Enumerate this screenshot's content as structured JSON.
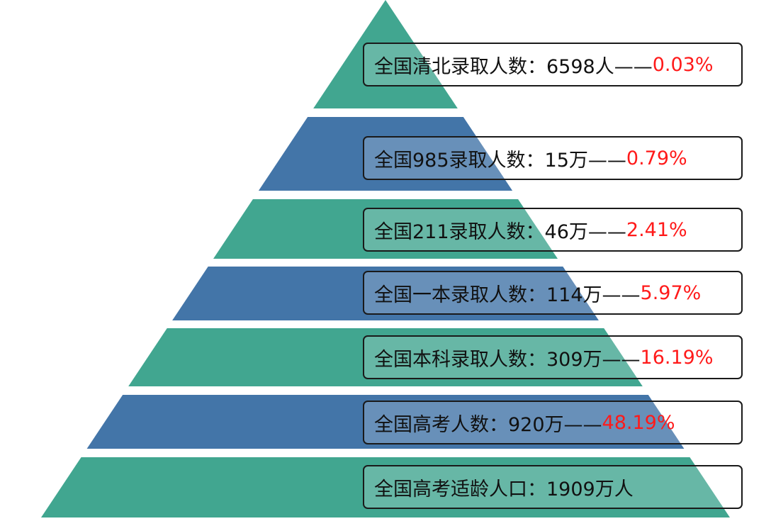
{
  "colors": {
    "green": "#41a690",
    "blue": "#4375a8",
    "percent": "#ff1a1a",
    "text": "#111111"
  },
  "tiers": [
    {
      "label": "全国清北录取人数：6598人——",
      "percent": "0.03%",
      "color": "green"
    },
    {
      "label": "全国985录取人数：15万——",
      "percent": "0.79%",
      "color": "blue"
    },
    {
      "label": "全国211录取人数：46万——",
      "percent": "2.41%",
      "color": "green"
    },
    {
      "label": "全国一本录取人数：114万——",
      "percent": "5.97%",
      "color": "blue"
    },
    {
      "label": "全国本科录取人数：309万——",
      "percent": "16.19%",
      "color": "green"
    },
    {
      "label": "全国高考人数：920万——",
      "percent": "48.19%",
      "color": "blue"
    },
    {
      "label": "全国高考适龄人口：1909万人",
      "percent": "",
      "color": "green"
    }
  ]
}
